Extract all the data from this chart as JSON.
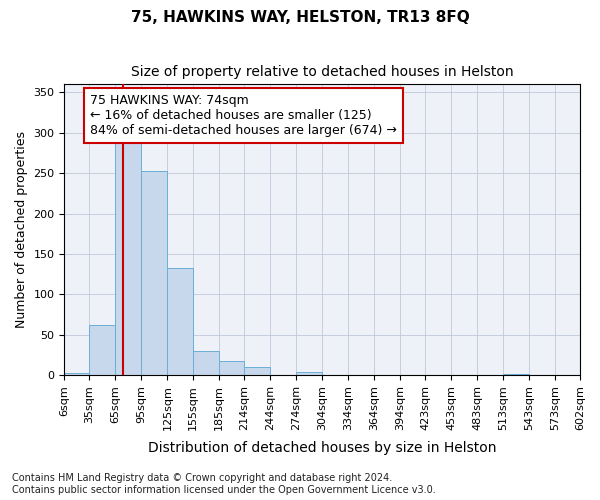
{
  "title": "75, HAWKINS WAY, HELSTON, TR13 8FQ",
  "subtitle": "Size of property relative to detached houses in Helston",
  "xlabel": "Distribution of detached houses by size in Helston",
  "ylabel": "Number of detached properties",
  "bin_labels": [
    "6sqm",
    "35sqm",
    "65sqm",
    "95sqm",
    "125sqm",
    "155sqm",
    "185sqm",
    "214sqm",
    "244sqm",
    "274sqm",
    "304sqm",
    "334sqm",
    "364sqm",
    "394sqm",
    "423sqm",
    "453sqm",
    "483sqm",
    "513sqm",
    "543sqm",
    "573sqm",
    "602sqm"
  ],
  "bar_heights": [
    2,
    62,
    290,
    253,
    132,
    30,
    17,
    10,
    0,
    4,
    0,
    0,
    0,
    0,
    0,
    0,
    0,
    1,
    0,
    0
  ],
  "bar_color": "#c8d8ec",
  "bar_edge_color": "#6baed6",
  "red_line_x": 74,
  "red_line_color": "#cc0000",
  "annotation_text": "75 HAWKINS WAY: 74sqm\n← 16% of detached houses are smaller (125)\n84% of semi-detached houses are larger (674) →",
  "annotation_box_facecolor": "#ffffff",
  "annotation_box_edgecolor": "#cc0000",
  "ylim": [
    0,
    360
  ],
  "yticks": [
    0,
    50,
    100,
    150,
    200,
    250,
    300,
    350
  ],
  "footer_text": "Contains HM Land Registry data © Crown copyright and database right 2024.\nContains public sector information licensed under the Open Government Licence v3.0.",
  "title_fontsize": 11,
  "subtitle_fontsize": 10,
  "ylabel_fontsize": 9,
  "xlabel_fontsize": 10,
  "tick_fontsize": 8,
  "annotation_fontsize": 9,
  "footer_fontsize": 7,
  "bin_edges": [
    6,
    35,
    65,
    95,
    125,
    155,
    185,
    214,
    244,
    274,
    304,
    334,
    364,
    394,
    423,
    453,
    483,
    513,
    543,
    573,
    602
  ]
}
